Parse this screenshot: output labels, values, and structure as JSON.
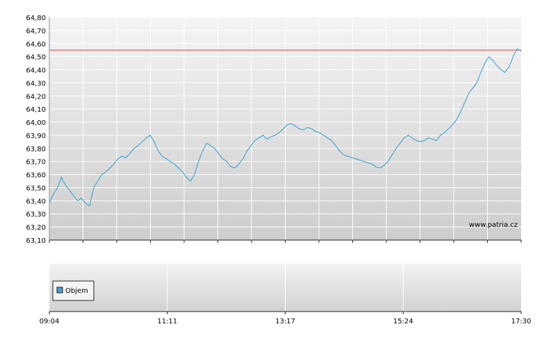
{
  "watermark": "www.patria.cz",
  "legend": {
    "label": "Objem"
  },
  "colors": {
    "line": "#4aa8d0",
    "reference": "#e04040",
    "volume_swatch": "#4a9ecf"
  },
  "chart_data": {
    "type": "line",
    "title": "",
    "xlabel": "",
    "ylabel": "",
    "ylim": [
      63.1,
      64.8
    ],
    "y_ticks": [
      "64,80",
      "64,70",
      "64,60",
      "64,50",
      "64,40",
      "64,30",
      "64,20",
      "64,10",
      "64,00",
      "63,90",
      "63,80",
      "63,70",
      "63,60",
      "63,50",
      "63,40",
      "63,30",
      "63,20",
      "63,10"
    ],
    "x_ticks": [
      "09:04",
      "11:11",
      "13:17",
      "15:24",
      "17:30"
    ],
    "grid": true,
    "reference_value": 64.55,
    "series": [
      {
        "values": [
          63.38,
          63.45,
          63.5,
          63.58,
          63.52,
          63.48,
          63.44,
          63.4,
          63.42,
          63.38,
          63.36,
          63.5,
          63.55,
          63.6,
          63.62,
          63.65,
          63.68,
          63.72,
          63.74,
          63.73,
          63.76,
          63.8,
          63.82,
          63.85,
          63.88,
          63.9,
          63.85,
          63.78,
          63.74,
          63.72,
          63.7,
          63.68,
          63.65,
          63.62,
          63.58,
          63.55,
          63.6,
          63.7,
          63.78,
          63.84,
          63.82,
          63.8,
          63.76,
          63.72,
          63.7,
          63.66,
          63.65,
          63.68,
          63.72,
          63.78,
          63.82,
          63.86,
          63.88,
          63.9,
          63.87,
          63.89,
          63.9,
          63.92,
          63.95,
          63.98,
          63.99,
          63.97,
          63.95,
          63.94,
          63.96,
          63.95,
          63.93,
          63.92,
          63.9,
          63.88,
          63.86,
          63.82,
          63.78,
          63.75,
          63.74,
          63.73,
          63.72,
          63.71,
          63.7,
          63.69,
          63.68,
          63.66,
          63.65,
          63.67,
          63.7,
          63.75,
          63.8,
          63.84,
          63.88,
          63.9,
          63.88,
          63.86,
          63.85,
          63.86,
          63.88,
          63.87,
          63.86,
          63.9,
          63.92,
          63.95,
          63.98,
          64.02,
          64.08,
          64.15,
          64.22,
          64.26,
          64.3,
          64.38,
          64.45,
          64.5,
          64.47,
          64.43,
          64.4,
          64.38,
          64.42,
          64.5,
          64.56,
          64.54
        ]
      }
    ]
  }
}
